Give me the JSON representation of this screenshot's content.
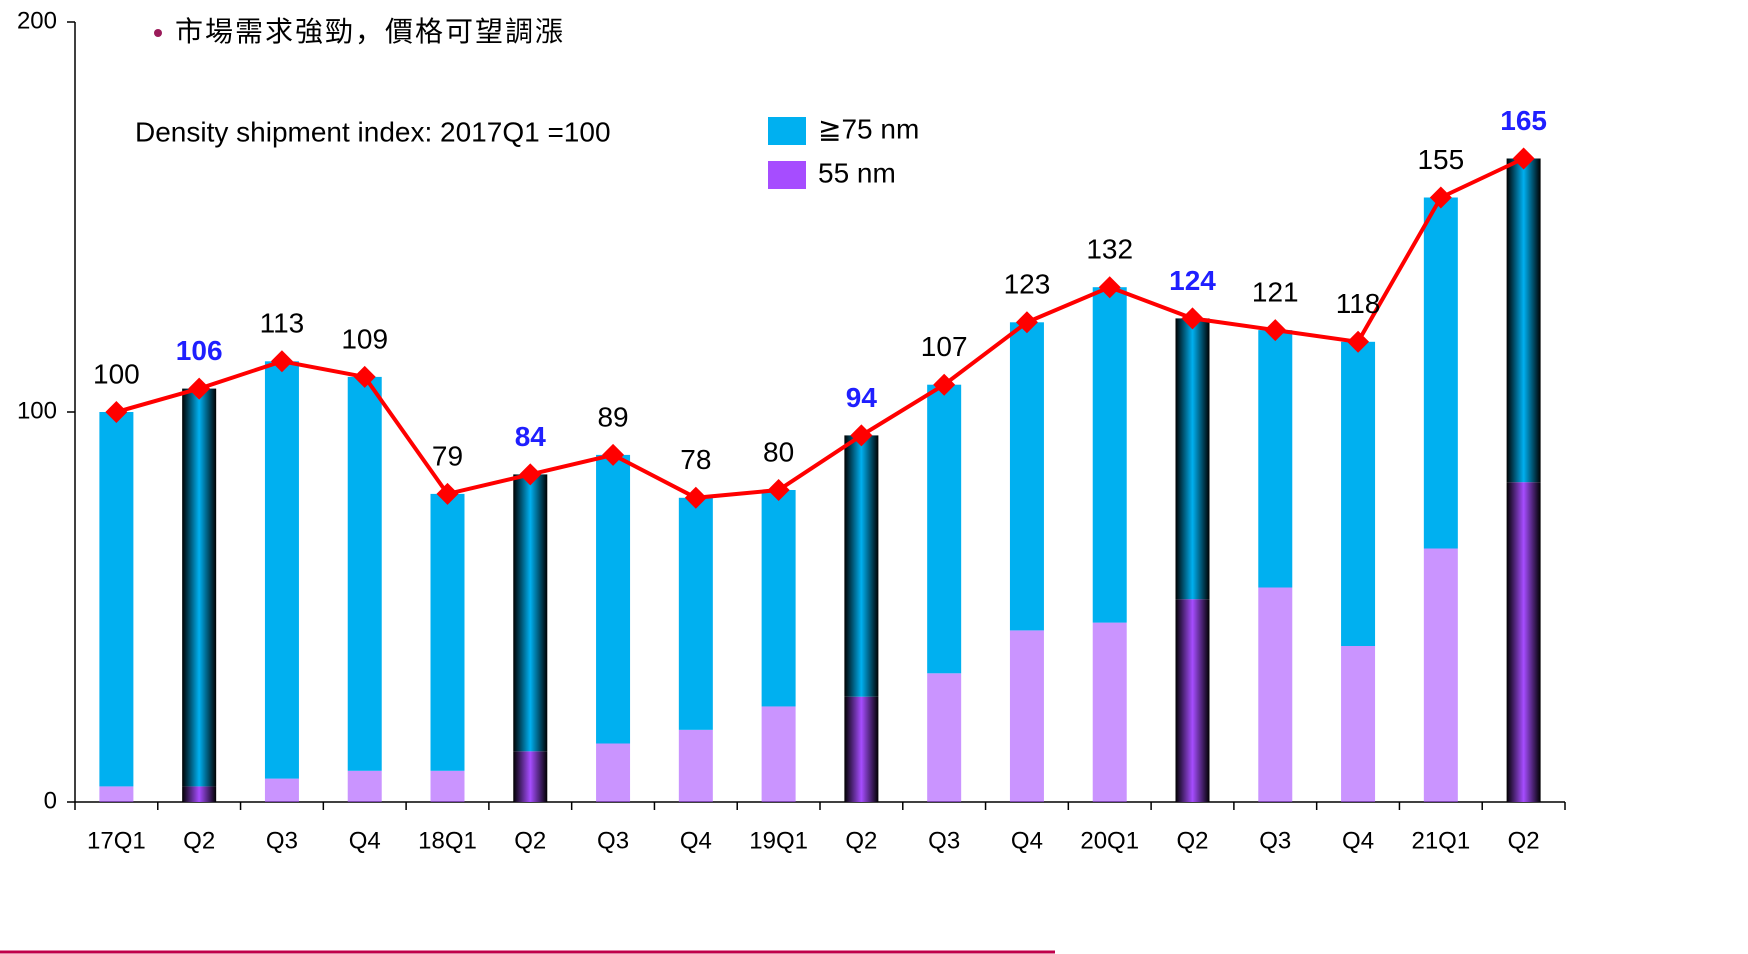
{
  "chart_data": {
    "type": "bar",
    "bullet": "市場需求強勁，價格可望調漲",
    "annotation": "Density shipment index: 2017Q1 =100",
    "categories": [
      "17Q1",
      "Q2",
      "Q3",
      "Q4",
      "18Q1",
      "Q2",
      "Q3",
      "Q4",
      "19Q1",
      "Q2",
      "Q3",
      "Q4",
      "20Q1",
      "Q2",
      "Q3",
      "Q4",
      "21Q1",
      "Q2"
    ],
    "series": [
      {
        "name": "55 nm",
        "color": "#a64dff",
        "values": [
          4,
          4,
          6,
          8,
          8,
          13,
          15,
          18.5,
          24.5,
          27,
          33,
          44,
          46,
          52,
          55,
          40,
          65,
          82
        ]
      },
      {
        "name": "≧75 nm",
        "color": "#00b0f0",
        "values": [
          96,
          102,
          107,
          101,
          71,
          71,
          74,
          59.5,
          55.5,
          67,
          74,
          79,
          86,
          72,
          66,
          78,
          90,
          83
        ]
      }
    ],
    "line": {
      "color": "#ff0000",
      "values": [
        100,
        106,
        113,
        109,
        79,
        84,
        89,
        78,
        80,
        94,
        107,
        123,
        132,
        124,
        121,
        118,
        155,
        165
      ]
    },
    "highlight_indices": [
      1,
      5,
      9,
      13,
      17
    ],
    "highlight_color": "#1f1fff",
    "ylim": [
      0,
      200
    ],
    "yticks": [
      0,
      100,
      200
    ],
    "grid": false
  }
}
